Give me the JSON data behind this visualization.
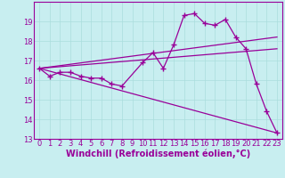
{
  "xlabel": "Windchill (Refroidissement éolien,°C)",
  "background_color": "#c8eef0",
  "grid_color": "#aadddd",
  "line_color": "#990099",
  "xlim": [
    -0.5,
    23.5
  ],
  "ylim": [
    13,
    20
  ],
  "yticks": [
    13,
    14,
    15,
    16,
    17,
    18,
    19
  ],
  "xticks": [
    0,
    1,
    2,
    3,
    4,
    5,
    6,
    7,
    8,
    9,
    10,
    11,
    12,
    13,
    14,
    15,
    16,
    17,
    18,
    19,
    20,
    21,
    22,
    23
  ],
  "series1_x": [
    0,
    1,
    2,
    3,
    4,
    5,
    6,
    7,
    8,
    10,
    11,
    12,
    13,
    14,
    15,
    16,
    17,
    18,
    19,
    20,
    21,
    22,
    23
  ],
  "series1_y": [
    16.6,
    16.2,
    16.4,
    16.4,
    16.2,
    16.1,
    16.1,
    15.8,
    15.7,
    16.9,
    17.4,
    16.6,
    17.8,
    19.3,
    19.4,
    18.9,
    18.8,
    19.1,
    18.2,
    17.6,
    15.8,
    14.4,
    13.3
  ],
  "series2_x": [
    0,
    23
  ],
  "series2_y": [
    16.6,
    18.2
  ],
  "series3_x": [
    0,
    23
  ],
  "series3_y": [
    16.6,
    17.6
  ],
  "series4_x": [
    0,
    23
  ],
  "series4_y": [
    16.6,
    13.3
  ],
  "marker": "+",
  "markersize": 4,
  "linewidth": 0.9,
  "xlabel_fontsize": 7,
  "tick_fontsize": 6
}
